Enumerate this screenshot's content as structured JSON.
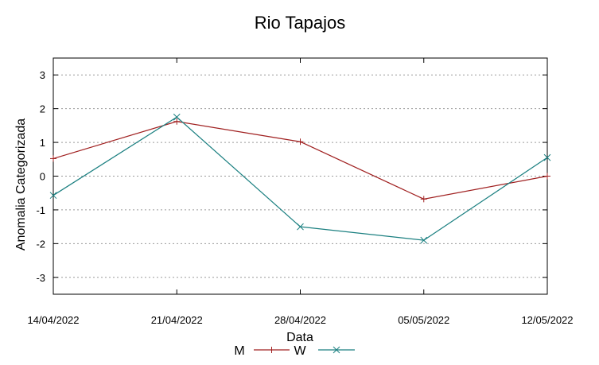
{
  "chart_data": {
    "type": "line",
    "title": "Rio Tapajos",
    "xlabel": "Data",
    "ylabel": "Anomalia Categorizada",
    "categories": [
      "14/04/2022",
      "21/04/2022",
      "28/04/2022",
      "05/05/2022",
      "12/05/2022"
    ],
    "ylim": [
      -3.5,
      3.5
    ],
    "yticks": [
      -3,
      -2,
      -1,
      0,
      1,
      2,
      3
    ],
    "grid": true,
    "legend_position": "bottom-center",
    "series": [
      {
        "name": "M",
        "values": [
          0.52,
          1.62,
          1.02,
          -0.68,
          0.0
        ],
        "color": "#a02020",
        "marker": "plus"
      },
      {
        "name": "W",
        "values": [
          -0.57,
          1.75,
          -1.5,
          -1.9,
          0.55
        ],
        "color": "#1a7f80",
        "marker": "cross"
      }
    ]
  }
}
